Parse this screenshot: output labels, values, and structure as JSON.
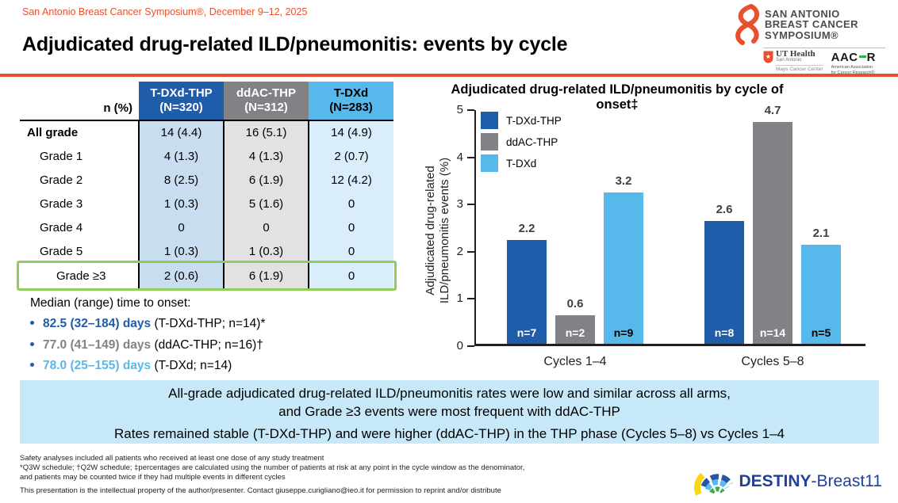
{
  "header": {
    "conference": "San Antonio Breast Cancer Symposium®, December 9–12, 2025",
    "title": "Adjudicated drug-related ILD/pneumonitis: events by cycle",
    "accent_color": "#E8502D"
  },
  "logos": {
    "sabcs": {
      "line1": "SAN ANTONIO",
      "line2": "BREAST CANCER",
      "line3": "SYMPOSIUM®"
    },
    "ut_health": {
      "name": "UT Health",
      "city": "San Antonio",
      "center": "Mays Cancer Center"
    },
    "aacr": {
      "word_left": "AAC",
      "word_right": "R",
      "caption1": "American Association",
      "caption2": "for Cancer Research®"
    },
    "destiny": {
      "bold": "DESTINY",
      "rest": "-Breast11"
    }
  },
  "table": {
    "corner_label": "n (%)",
    "columns": [
      {
        "name": "T-DXd-THP",
        "n": "(N=320)",
        "header_bg": "#1F5CA9",
        "body_bg": "#C9DDF1"
      },
      {
        "name": "ddAC-THP",
        "n": "(N=312)",
        "header_bg": "#808285",
        "body_bg": "#E2E2E2"
      },
      {
        "name": "T-DXd",
        "n": "(N=283)",
        "header_bg": "#57B8EB",
        "body_bg": "#D9EDFB"
      }
    ],
    "rows": [
      {
        "label": "All grade",
        "values": [
          "14  (4.4)",
          "16  (5.1)",
          "14  (4.9)"
        ]
      },
      {
        "label": "Grade 1",
        "values": [
          "4  (1.3)",
          "4  (1.3)",
          "2  (0.7)"
        ]
      },
      {
        "label": "Grade 2",
        "values": [
          "8  (2.5)",
          "6  (1.9)",
          "12  (4.2)"
        ]
      },
      {
        "label": "Grade 3",
        "values": [
          "1  (0.3)",
          "5  (1.6)",
          "0"
        ]
      },
      {
        "label": "Grade 4",
        "values": [
          "0",
          "0",
          "0"
        ]
      },
      {
        "label": "Grade 5",
        "values": [
          "1  (0.3)",
          "1  (0.3)",
          "0"
        ]
      },
      {
        "label": "Grade ≥3",
        "values": [
          "2  (0.6)",
          "6  (1.9)",
          "0"
        ]
      }
    ],
    "highlight_row": "Grade ≥3",
    "highlight_color": "#8FCE5C"
  },
  "median": {
    "heading": "Median (range) time to onset:",
    "items": [
      {
        "value": "82.5 (32–184) days",
        "rest": " (T-DXd-THP; n=14)*",
        "color": "#1F5CA9"
      },
      {
        "value": "77.0 (41–149) days",
        "rest": " (ddAC-THP; n=16)†",
        "color": "#808285"
      },
      {
        "value": "78.0 (25–155) days",
        "rest": " (T-DXd; n=14)",
        "color": "#57B8EB"
      }
    ]
  },
  "chart_data": {
    "type": "bar",
    "title": "Adjudicated drug-related ILD/pneumonitis by cycle of onset‡",
    "ylabel_line1": "Adjudicated drug-related",
    "ylabel_line2": "ILD/pneumonitis events (%)",
    "categories": [
      "Cycles 1–4",
      "Cycles 5–8"
    ],
    "series": [
      {
        "name": "T-DXd-THP",
        "color": "#1F5CA9",
        "values": [
          2.2,
          2.6
        ],
        "n_labels": [
          "n=7",
          "n=8"
        ],
        "n_label_color": "#FFFFFF"
      },
      {
        "name": "ddAC-THP",
        "color": "#808285",
        "values": [
          0.6,
          4.7
        ],
        "n_labels": [
          "n=2",
          "n=14"
        ],
        "n_label_color": "#FFFFFF"
      },
      {
        "name": "T-DXd",
        "color": "#57B8EB",
        "values": [
          3.2,
          2.1
        ],
        "n_labels": [
          "n=9",
          "n=5"
        ],
        "n_label_color": "#000000"
      }
    ],
    "ylim": [
      0,
      5
    ],
    "yticks": [
      0,
      1,
      2,
      3,
      4,
      5
    ],
    "legend_position": "top-left",
    "grid": false
  },
  "summary": {
    "line1": "All-grade adjudicated drug-related ILD/pneumonitis rates were low and similar across all arms,",
    "line2": "and Grade ≥3 events were most frequent with ddAC-THP",
    "line3": "Rates remained stable (T-DXd-THP) and were higher (ddAC-THP) in the THP phase (Cycles 5–8) vs Cycles 1–4",
    "bg_color": "#C7E8F9"
  },
  "footnotes": {
    "line1": "Safety analyses included all patients who received at least one dose of any study treatment",
    "line2": "*Q3W schedule; †Q2W schedule; ‡percentages are calculated using the number of patients at risk at any point in the cycle window as the denominator,",
    "line3": "and patients may be counted twice if they had multiple events in different cycles",
    "line4": "This presentation is the intellectual property of the author/presenter. Contact giuseppe.curigliano@ieo.it for permission to reprint and/or distribute"
  }
}
